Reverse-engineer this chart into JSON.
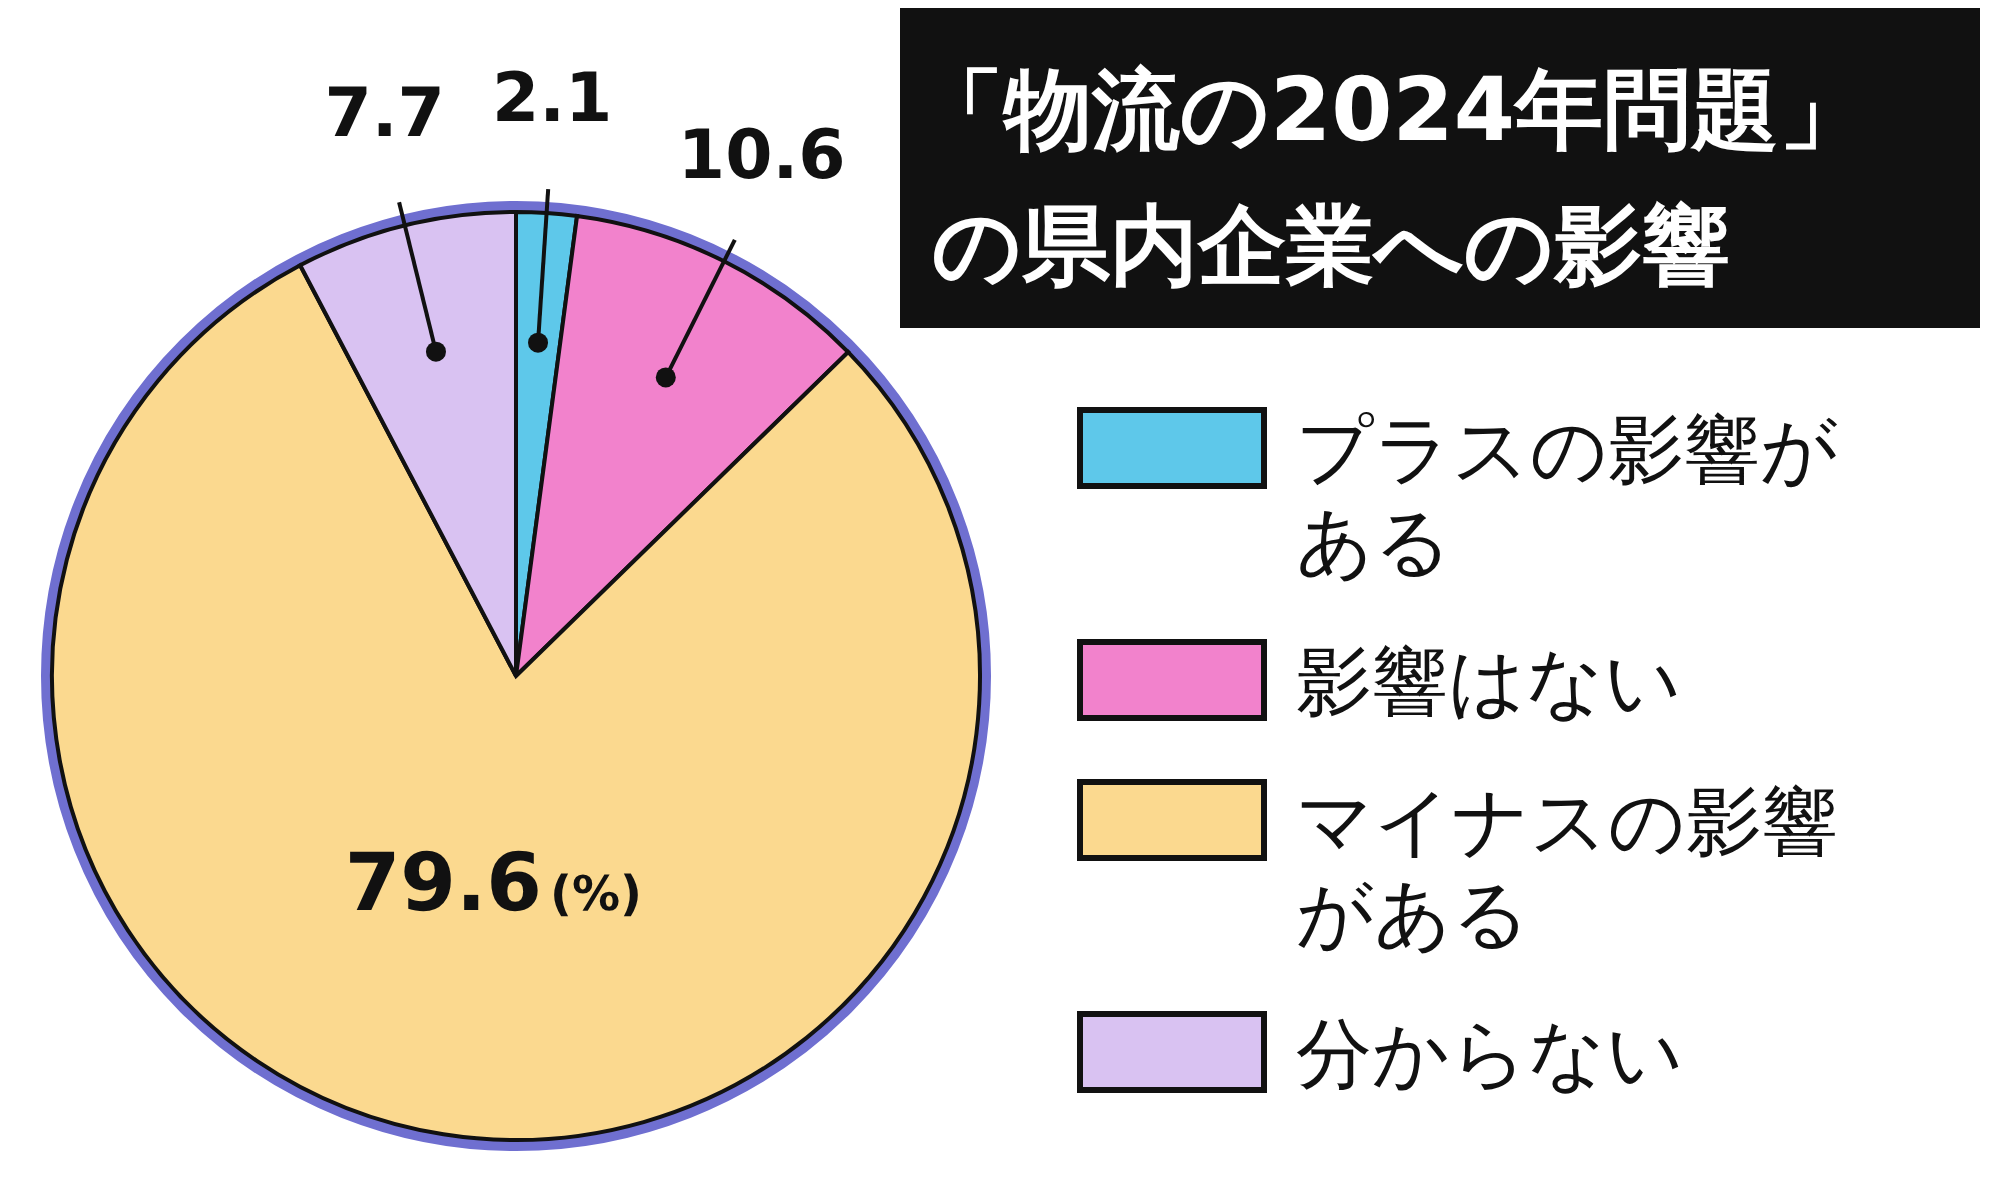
{
  "chart_data": {
    "type": "pie",
    "title": "「物流の2024年問題」の県内企業への影響",
    "categories": [
      "プラスの影響がある",
      "影響はない",
      "マイナスの影響がある",
      "分からない"
    ],
    "values": [
      2.1,
      10.6,
      79.6,
      7.7
    ],
    "colors": [
      "#5ec8ea",
      "#f282cc",
      "#fbd98f",
      "#d9c2f2"
    ],
    "data_labels": true,
    "annotations": [
      "(%)"
    ],
    "legend": "right"
  }
}
